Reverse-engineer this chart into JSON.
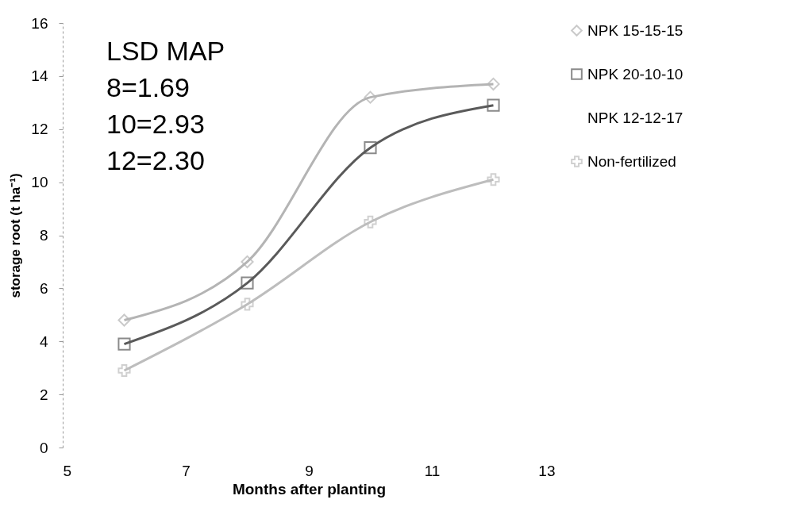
{
  "chart_data": {
    "type": "line",
    "xlabel": "Months after planting",
    "ylabel": "storage root (t ha⁻¹)",
    "x": [
      6,
      8,
      10,
      12
    ],
    "series": [
      {
        "name": "NPK 15-15-15",
        "color": "#b4b4b4",
        "marker": "diamond",
        "values": [
          4.8,
          7.0,
          13.2,
          13.7
        ]
      },
      {
        "name": "NPK 20-10-10",
        "color": "#5a5a5a",
        "marker": "square",
        "values": [
          3.9,
          6.2,
          11.3,
          12.9
        ]
      },
      {
        "name": "NPK 12-12-17",
        "marker": "none",
        "values": [
          null,
          null,
          null,
          null
        ]
      },
      {
        "name": "Non-fertilized",
        "color": "#bdbdbd",
        "marker": "cross",
        "values": [
          2.9,
          5.4,
          8.5,
          10.1
        ]
      }
    ],
    "xlim": [
      5,
      13
    ],
    "xticks": [
      5,
      7,
      9,
      11,
      13
    ],
    "ylim": [
      0,
      16
    ],
    "yticks": [
      0,
      2,
      4,
      6,
      8,
      10,
      12,
      14,
      16
    ],
    "grid": false,
    "legend": "right",
    "annotations": [
      "LSD MAP",
      "8=1.69",
      "10=2.93",
      "12=2.30"
    ]
  }
}
